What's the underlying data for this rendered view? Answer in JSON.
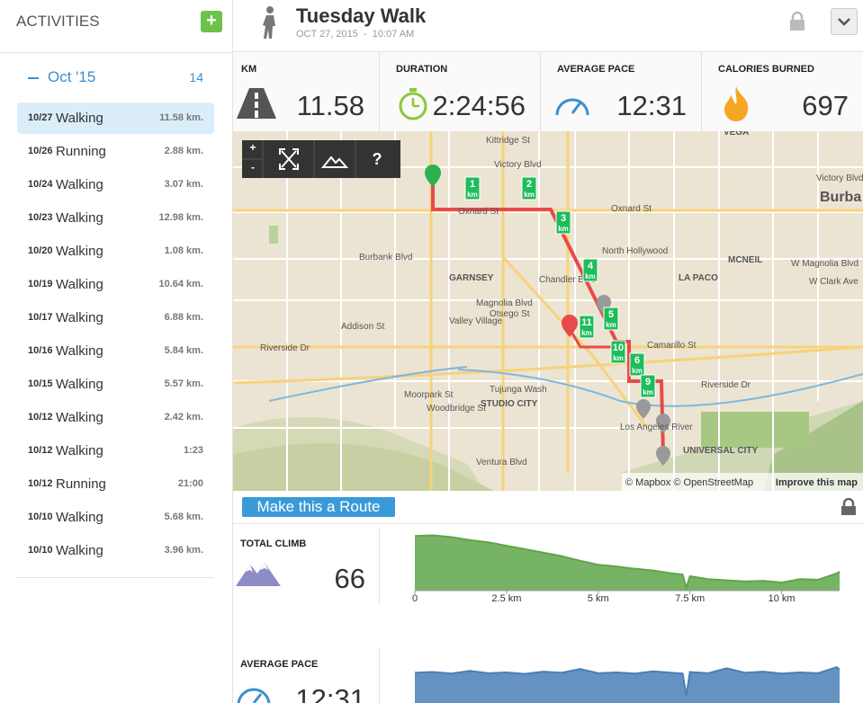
{
  "sidebar": {
    "title": "ACTIVITIES",
    "add_button": "+",
    "month": "Oct '15",
    "count": "14",
    "activities": [
      {
        "date": "10/27",
        "type": "Walking",
        "value": "11.58 km."
      },
      {
        "date": "10/26",
        "type": "Running",
        "value": "2.88 km."
      },
      {
        "date": "10/24",
        "type": "Walking",
        "value": "3.07 km."
      },
      {
        "date": "10/23",
        "type": "Walking",
        "value": "12.98 km."
      },
      {
        "date": "10/20",
        "type": "Walking",
        "value": "1.08 km."
      },
      {
        "date": "10/19",
        "type": "Walking",
        "value": "10.64 km."
      },
      {
        "date": "10/17",
        "type": "Walking",
        "value": "6.88 km."
      },
      {
        "date": "10/16",
        "type": "Walking",
        "value": "5.84 km."
      },
      {
        "date": "10/15",
        "type": "Walking",
        "value": "5.57 km."
      },
      {
        "date": "10/12",
        "type": "Walking",
        "value": "2.42 km."
      },
      {
        "date": "10/12",
        "type": "Walking",
        "value": "1:23"
      },
      {
        "date": "10/12",
        "type": "Running",
        "value": "21:00"
      },
      {
        "date": "10/10",
        "type": "Walking",
        "value": "5.68 km."
      },
      {
        "date": "10/10",
        "type": "Walking",
        "value": "3.96 km."
      }
    ]
  },
  "header": {
    "title": "Tuesday Walk",
    "subtitle": "OCT 27, 2015  -  10:07 AM"
  },
  "stats": [
    {
      "label": "KM",
      "value": 11.58
    },
    {
      "label": "DURATION",
      "value": "2:24:56"
    },
    {
      "label": "AVERAGE PACE",
      "value": "12:31"
    },
    {
      "label": "CALORIES BURNED",
      "value": 697
    }
  ],
  "map": {
    "controls": [
      "+",
      "-",
      "?"
    ],
    "labels": [
      "Kittridge St",
      "Victory Blvd",
      "Oxnard St",
      "Oxnard St",
      "Burbank Blvd",
      "GARNSEY",
      "Chandler Blvd",
      "Magnolia Blvd",
      "Otsego St",
      "Valley Village",
      "North Hollywood",
      "Addison St",
      "Riverside Dr",
      "Camarillo St",
      "Moorpark St",
      "Woodbridge St",
      "STUDIO CITY",
      "Tujunga Wash",
      "Los Angeles River",
      "UNIVERSAL CITY",
      "VEGA",
      "Burba",
      "Victory Blvd",
      "LA PACO",
      "MCNEIL",
      "Riverside Dr",
      "Ventura Blvd",
      "W Magnolia Blvd",
      "W Clark Ave"
    ],
    "markers": [
      {
        "number": "1",
        "unit": "km"
      },
      {
        "number": "2",
        "unit": "km"
      },
      {
        "number": "3",
        "unit": "km"
      },
      {
        "number": "4",
        "unit": "km"
      },
      {
        "number": "5",
        "unit": "km"
      },
      {
        "number": "6",
        "unit": "km"
      },
      {
        "number": "9",
        "unit": "km"
      },
      {
        "number": "10",
        "unit": "km"
      },
      {
        "number": "11",
        "unit": "km"
      }
    ],
    "attribution": "© Mapbox © OpenStreetMap",
    "improve": "Improve this map"
  },
  "route_button": "Make this a Route",
  "climb": {
    "label": "TOTAL CLIMB",
    "value": 66,
    "chart_data": {
      "type": "area",
      "color": "#5fa64a",
      "x": [
        0,
        0.5,
        1,
        1.5,
        2,
        2.5,
        3,
        3.5,
        4,
        4.5,
        5,
        5.5,
        6,
        6.5,
        7,
        7.3,
        7.4,
        7.5,
        8,
        8.5,
        9,
        9.5,
        10,
        10.5,
        11,
        11.5,
        11.58
      ],
      "values": [
        95,
        96,
        93,
        88,
        84,
        78,
        72,
        66,
        60,
        52,
        45,
        42,
        38,
        35,
        30,
        28,
        5,
        25,
        20,
        18,
        16,
        17,
        14,
        20,
        19,
        30,
        33
      ],
      "xlim": [
        0,
        11.58
      ],
      "ylim": [
        0,
        100
      ],
      "xticks": [
        0,
        {
          "value": 2.5,
          "label": "2.5 km"
        },
        {
          "value": 5,
          "label": "5 km"
        },
        {
          "value": 7.5,
          "label": "7.5 km"
        },
        {
          "value": 10,
          "label": "10 km"
        }
      ]
    }
  },
  "pace": {
    "label": "AVERAGE PACE",
    "value": "12:31",
    "chart_data": {
      "type": "area",
      "color": "#4a7fb5",
      "x": [
        0,
        0.5,
        1,
        1.5,
        2,
        2.5,
        3,
        3.5,
        4,
        4.5,
        5,
        5.5,
        6,
        6.5,
        7,
        7.3,
        7.4,
        7.5,
        8,
        8.5,
        9,
        9.5,
        10,
        10.5,
        11,
        11.5,
        11.58
      ],
      "values": [
        80,
        82,
        78,
        85,
        79,
        81,
        77,
        83,
        80,
        90,
        79,
        81,
        78,
        84,
        80,
        78,
        20,
        82,
        79,
        92,
        80,
        83,
        78,
        81,
        79,
        95,
        88
      ],
      "xlim": [
        0,
        11.58
      ],
      "ylim": [
        0,
        100
      ]
    }
  }
}
